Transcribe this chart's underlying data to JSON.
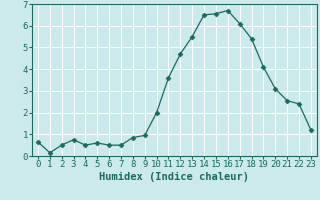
{
  "x": [
    0,
    1,
    2,
    3,
    4,
    5,
    6,
    7,
    8,
    9,
    10,
    11,
    12,
    13,
    14,
    15,
    16,
    17,
    18,
    19,
    20,
    21,
    22,
    23
  ],
  "y": [
    0.65,
    0.15,
    0.5,
    0.75,
    0.5,
    0.6,
    0.5,
    0.5,
    0.85,
    0.95,
    2.0,
    3.6,
    4.7,
    5.5,
    6.5,
    6.55,
    6.7,
    6.1,
    5.4,
    4.1,
    3.1,
    2.55,
    2.4,
    1.2
  ],
  "line_color": "#1a6b5e",
  "marker": "D",
  "marker_size": 2.5,
  "bg_color": "#cce9eb",
  "grid_color": "#ffffff",
  "xlabel": "Humidex (Indice chaleur)",
  "xlim": [
    -0.5,
    23.5
  ],
  "ylim": [
    0,
    7
  ],
  "xticks": [
    0,
    1,
    2,
    3,
    4,
    5,
    6,
    7,
    8,
    9,
    10,
    11,
    12,
    13,
    14,
    15,
    16,
    17,
    18,
    19,
    20,
    21,
    22,
    23
  ],
  "yticks": [
    0,
    1,
    2,
    3,
    4,
    5,
    6,
    7
  ],
  "xlabel_fontsize": 7.5,
  "tick_fontsize": 6.5,
  "tick_color": "#1a6b5e",
  "label_color": "#1a6b5e",
  "linewidth": 0.9
}
